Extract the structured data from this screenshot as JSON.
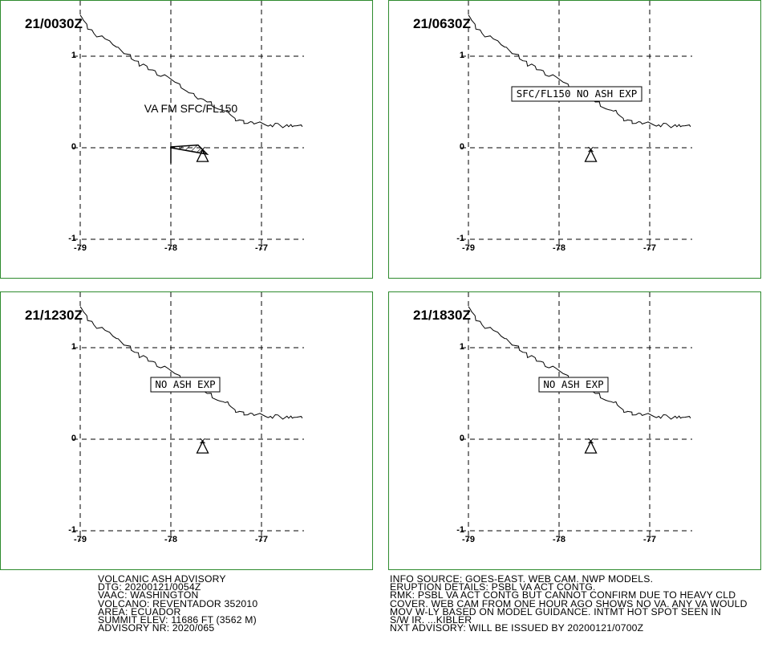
{
  "panels": [
    {
      "valid_time": "21/0030Z",
      "label": "VA FM SFC/FL150",
      "label_boxed": false,
      "ash_polygon": [
        [
          -78.0,
          0.0
        ],
        [
          -77.6,
          -0.07
        ],
        [
          -77.7,
          0.03
        ],
        [
          -78.0,
          0.01
        ],
        [
          -78.0,
          -0.17
        ]
      ]
    },
    {
      "valid_time": "21/0630Z",
      "label": "SFC/FL150 NO ASH EXP",
      "label_boxed": true
    },
    {
      "valid_time": "21/1230Z",
      "label": "NO ASH EXP",
      "label_boxed": true
    },
    {
      "valid_time": "21/1830Z",
      "label": "NO ASH EXP",
      "label_boxed": true
    }
  ],
  "axes": {
    "lon_ticks": [
      "-79",
      "-78",
      "-77"
    ],
    "lat_ticks": [
      "1",
      "0",
      "-1"
    ]
  },
  "volcano": {
    "symbol": "volcano-triangle-icon",
    "lon": -77.65,
    "lat": -0.08
  },
  "coastline": [
    [
      -79.0,
      1.45
    ],
    [
      -78.85,
      1.25
    ],
    [
      -78.6,
      1.1
    ],
    [
      -78.4,
      0.95
    ],
    [
      -78.2,
      0.85
    ],
    [
      -78.0,
      0.75
    ],
    [
      -77.8,
      0.6
    ],
    [
      -77.6,
      0.5
    ],
    [
      -77.4,
      0.4
    ],
    [
      -77.25,
      0.3
    ],
    [
      -77.1,
      0.28
    ],
    [
      -76.9,
      0.25
    ],
    [
      -76.7,
      0.23
    ],
    [
      -76.55,
      0.23
    ]
  ],
  "advisory_left": [
    "VOLCANIC ASH ADVISORY",
    "DTG: 20200121/0054Z",
    "VAAC: WASHINGTON",
    "VOLCANO: REVENTADOR 352010",
    "AREA: ECUADOR",
    "SUMMIT ELEV: 11686 FT (3562 M)",
    "ADVISORY NR: 2020/065"
  ],
  "advisory_right": [
    "INFO SOURCE: GOES-EAST. WEB CAM. NWP MODELS.",
    "ERUPTION DETAILS: PSBL VA ACT CONTG.",
    "RMK: PSBL VA ACT CONTG BUT CANNOT CONFIRM DUE TO HEAVY CLD",
    "COVER. WEB CAM FROM ONE HOUR AGO SHOWS NO VA. ANY VA WOULD",
    "MOV W-LY BASED ON MODEL GUIDANCE. INTMT HOT SPOT SEEN IN",
    "S/W IR. ...KIBLER",
    "NXT ADVISORY: WILL BE ISSUED BY 20200121/0700Z"
  ],
  "colors": {
    "panel_border": "#2e8b2e",
    "ink": "#000000"
  }
}
